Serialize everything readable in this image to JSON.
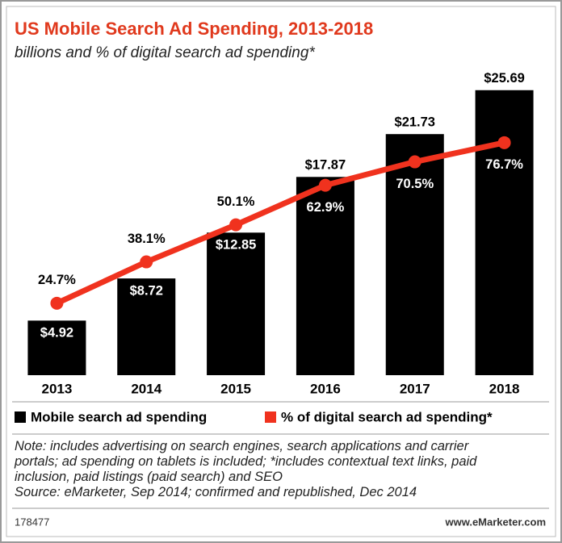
{
  "chart_data": {
    "type": "bar-line",
    "title": "US Mobile Search Ad Spending, 2013-2018",
    "subtitle": "billions and % of digital search ad spending*",
    "categories": [
      "2013",
      "2014",
      "2015",
      "2016",
      "2017",
      "2018"
    ],
    "series": [
      {
        "name": "Mobile search ad spending",
        "type": "bar",
        "color": "#000000",
        "values": [
          4.92,
          8.72,
          12.85,
          17.87,
          21.73,
          25.69
        ],
        "value_labels": [
          "$4.92",
          "$8.72",
          "$12.85",
          "$17.87",
          "$21.73",
          "$25.69"
        ]
      },
      {
        "name": "% of digital search ad spending*",
        "type": "line",
        "color": "#f0321e",
        "axis": "y2",
        "values": [
          24.7,
          38.1,
          50.1,
          62.9,
          70.5,
          76.7
        ],
        "value_labels": [
          "24.7%",
          "38.1%",
          "50.1%",
          "62.9%",
          "70.5%",
          "76.7%"
        ]
      }
    ],
    "ylim": [
      0,
      28
    ],
    "y2lim": [
      1.4,
      102
    ],
    "note": "Note: includes advertising on search engines, search applications and carrier portals; ad spending on tablets is included; *includes contextual text links, paid inclusion, paid listings (paid search) and SEO",
    "source": "Source: eMarketer, Sep 2014; confirmed and republished, Dec 2014",
    "chart_id": "178477",
    "website": "www.eMarketer.com"
  }
}
